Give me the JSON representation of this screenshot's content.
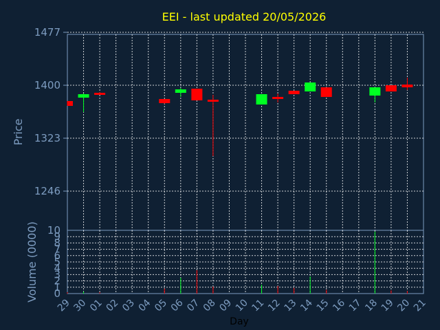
{
  "chart_data": {
    "type": "candlestick",
    "title": "EEI - last updated 20/05/2026",
    "xlabel": "Day",
    "ylabel": "Price",
    "volume_label": "Volume (0000)",
    "price_ylim": [
      1246,
      1477
    ],
    "price_ticks": [
      1246,
      1323,
      1400,
      1477
    ],
    "price_tick_labels": [
      "1246",
      "1323",
      "1400",
      "1477"
    ],
    "volume_ylim": [
      0,
      10
    ],
    "volume_ticks": [
      0,
      1,
      2,
      3,
      4,
      5,
      6,
      7,
      8,
      9,
      10
    ],
    "volume_tick_labels": [
      "0",
      "1",
      "2",
      "3",
      "4",
      "5",
      "6",
      "7",
      "8",
      "9",
      "10"
    ],
    "days": [
      "29",
      "30",
      "01",
      "02",
      "03",
      "04",
      "05",
      "06",
      "07",
      "08",
      "09",
      "10",
      "11",
      "12",
      "13",
      "14",
      "15",
      "16",
      "17",
      "18",
      "19",
      "20",
      "21"
    ],
    "grid": true,
    "colors": {
      "up": "#00ff22",
      "down": "#ff0000",
      "title": "#ffff00",
      "axis_text": "#7d9cc0",
      "grid": "#ffffff",
      "background": "#0f2033"
    },
    "candles": [
      {
        "day": "29",
        "open": 1377,
        "high": 1377,
        "low": 1370,
        "close": 1370,
        "volume": 0.2
      },
      {
        "day": "30",
        "open": 1382,
        "high": 1388,
        "low": 1361,
        "close": 1387,
        "volume": 0.3
      },
      {
        "day": "01",
        "open": 1389,
        "high": 1390,
        "low": 1387,
        "close": 1388,
        "volume": 0.2
      },
      {
        "day": "05",
        "open": 1380,
        "high": 1380,
        "low": 1373,
        "close": 1374,
        "volume": 0.8
      },
      {
        "day": "06",
        "open": 1389,
        "high": 1396,
        "low": 1383,
        "close": 1394,
        "volume": 2.5
      },
      {
        "day": "07",
        "open": 1395,
        "high": 1395,
        "low": 1378,
        "close": 1378,
        "volume": 3.7
      },
      {
        "day": "08",
        "open": 1379,
        "high": 1386,
        "low": 1297,
        "close": 1376,
        "volume": 1.1
      },
      {
        "day": "11",
        "open": 1372,
        "high": 1387,
        "low": 1372,
        "close": 1387,
        "volume": 1.4
      },
      {
        "day": "12",
        "open": 1383,
        "high": 1388,
        "low": 1375,
        "close": 1381,
        "volume": 1.2
      },
      {
        "day": "13",
        "open": 1392,
        "high": 1392,
        "low": 1387,
        "close": 1387,
        "volume": 0.9
      },
      {
        "day": "14",
        "open": 1391,
        "high": 1404,
        "low": 1391,
        "close": 1404,
        "volume": 2.7
      },
      {
        "day": "15",
        "open": 1397,
        "high": 1397,
        "low": 1383,
        "close": 1383,
        "volume": 0.6
      },
      {
        "day": "18",
        "open": 1385,
        "high": 1397,
        "low": 1375,
        "close": 1397,
        "volume": 9.8
      },
      {
        "day": "19",
        "open": 1400,
        "high": 1400,
        "low": 1391,
        "close": 1391,
        "volume": 0.5
      },
      {
        "day": "20",
        "open": 1401,
        "high": 1411,
        "low": 1393,
        "close": 1397,
        "volume": 0.4
      }
    ]
  }
}
